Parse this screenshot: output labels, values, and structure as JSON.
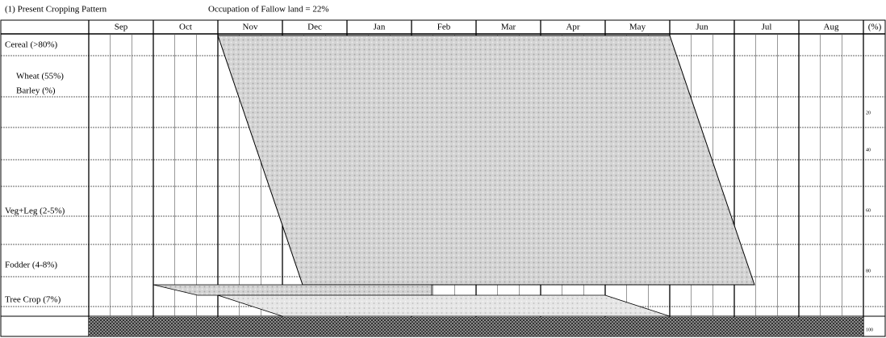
{
  "header": {
    "title": "(1) Present Cropping Pattern",
    "note": "Occupation of Fallow land = 22%"
  },
  "months": [
    "Sep",
    "Oct",
    "Nov",
    "Dec",
    "Jan",
    "Feb",
    "Mar",
    "Apr",
    "May",
    "Jun",
    "Jul",
    "Aug"
  ],
  "percent_header": "(%)",
  "rows": [
    "Cereal (>80%)",
    "Wheat (55%)",
    "Barley (%)",
    "Veg+Leg (2-5%)",
    "Fodder (4-8%)",
    "Tree Crop (7%)"
  ],
  "percent_ticks": [
    20,
    40,
    60,
    80,
    100
  ]
}
